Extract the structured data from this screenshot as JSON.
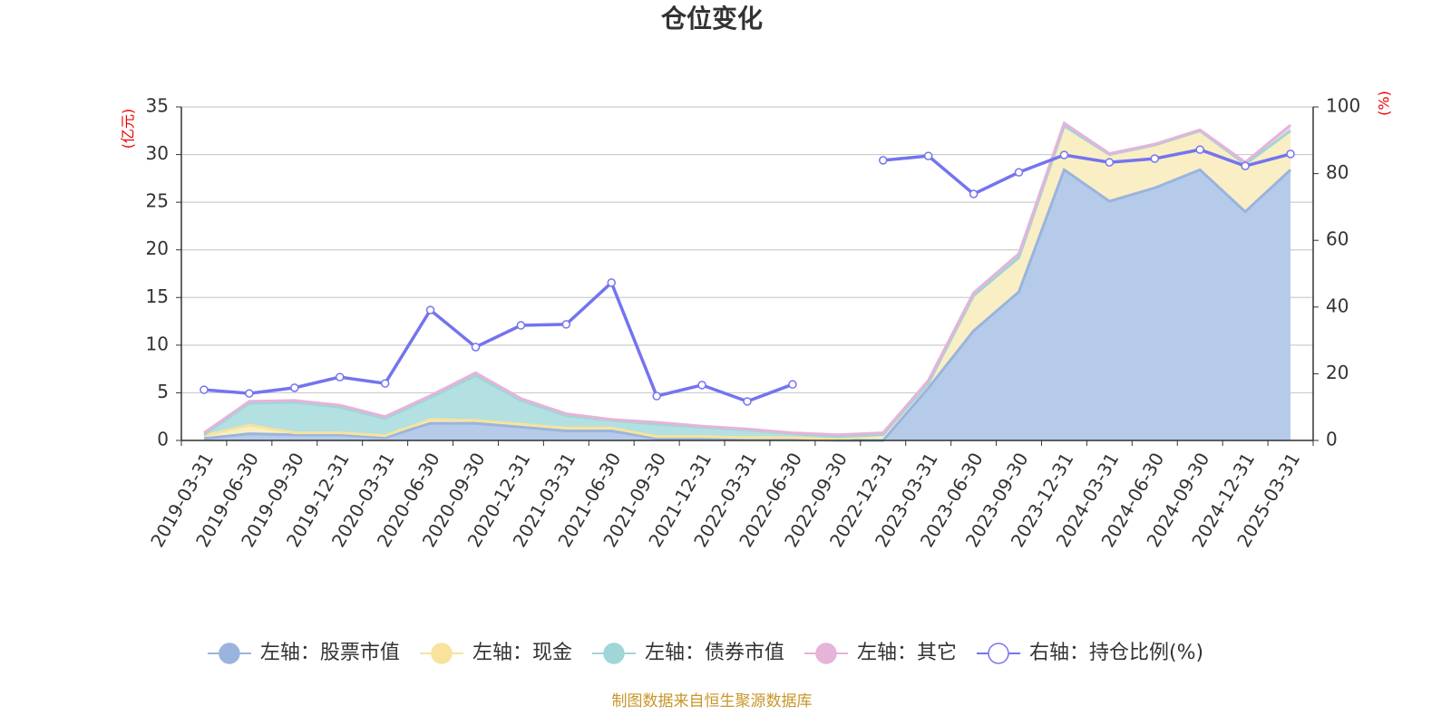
{
  "chart_data": {
    "type": "area",
    "title": "仓位变化",
    "y_label": "(亿元)",
    "y2_label": "(%)",
    "source": "制图数据来自恒生聚源数据库",
    "categories": [
      "2019-03-31",
      "2019-06-30",
      "2019-09-30",
      "2019-12-31",
      "2020-03-31",
      "2020-06-30",
      "2020-09-30",
      "2020-12-31",
      "2021-03-31",
      "2021-06-30",
      "2021-09-30",
      "2021-12-31",
      "2022-03-31",
      "2022-06-30",
      "2022-09-30",
      "2022-12-31",
      "2023-03-31",
      "2023-06-30",
      "2023-09-30",
      "2023-12-31",
      "2024-03-31",
      "2024-06-30",
      "2024-09-30",
      "2024-12-31",
      "2025-03-31"
    ],
    "ylim": [
      0,
      35
    ],
    "yticks": [
      0,
      5,
      10,
      15,
      20,
      25,
      30,
      35
    ],
    "y2lim": [
      0,
      100
    ],
    "y2ticks": [
      0,
      20,
      40,
      60,
      80,
      100
    ],
    "grid": true,
    "stacked": true,
    "legend": "bottom",
    "series": [
      {
        "name": "左轴：股票市值",
        "type": "area",
        "color": "#9ab4de",
        "fill": "#b6cbea",
        "values": [
          0.2,
          0.7,
          0.6,
          0.6,
          0.3,
          1.8,
          1.8,
          1.4,
          1.0,
          1.0,
          0.2,
          0.2,
          0.1,
          0.1,
          0,
          0,
          5.5,
          11.5,
          15.6,
          28.4,
          25.1,
          26.5,
          28.4,
          24.0,
          28.4
        ]
      },
      {
        "name": "左轴：现金",
        "type": "area",
        "color": "#f7e39c",
        "fill": "#faeec4",
        "values": [
          0.3,
          0.9,
          0.2,
          0.2,
          0.2,
          0.4,
          0.3,
          0.3,
          0.3,
          0.3,
          0.2,
          0.2,
          0.2,
          0.2,
          0.1,
          0.6,
          0.5,
          3.7,
          3.6,
          4.6,
          4.9,
          4.5,
          4.1,
          5.0,
          4.1
        ]
      },
      {
        "name": "左轴：债券市值",
        "type": "area",
        "color": "#9fd6d8",
        "fill": "#b3e0e1",
        "values": [
          0.1,
          2.3,
          3.2,
          2.7,
          1.8,
          2.3,
          4.7,
          2.5,
          1.3,
          0.8,
          1.3,
          1.0,
          0.8,
          0.4,
          0.3,
          0,
          0,
          0,
          0,
          0,
          0,
          0,
          0,
          0,
          0
        ]
      },
      {
        "name": "左轴：其它",
        "type": "area",
        "color": "#e6b3d9",
        "fill": "#f2d6ea",
        "values": [
          0.2,
          0.2,
          0.2,
          0.2,
          0.2,
          0.2,
          0.3,
          0.2,
          0.2,
          0.1,
          0.2,
          0.1,
          0.1,
          0.1,
          0.2,
          0.2,
          0.3,
          0.3,
          0.4,
          0.3,
          0.1,
          0.1,
          0.1,
          0.2,
          0.6
        ]
      },
      {
        "name": "右轴：持仓比例(%)",
        "type": "line",
        "axis": "y2",
        "color": "#7474ef",
        "values": [
          15.2,
          14.1,
          15.8,
          19.0,
          17.1,
          39.1,
          28.0,
          34.5,
          34.8,
          47.3,
          13.3,
          16.6,
          11.7,
          16.8,
          null,
          84.0,
          85.3,
          73.9,
          80.4,
          85.6,
          83.4,
          84.5,
          87.2,
          82.3,
          85.9
        ]
      }
    ]
  }
}
